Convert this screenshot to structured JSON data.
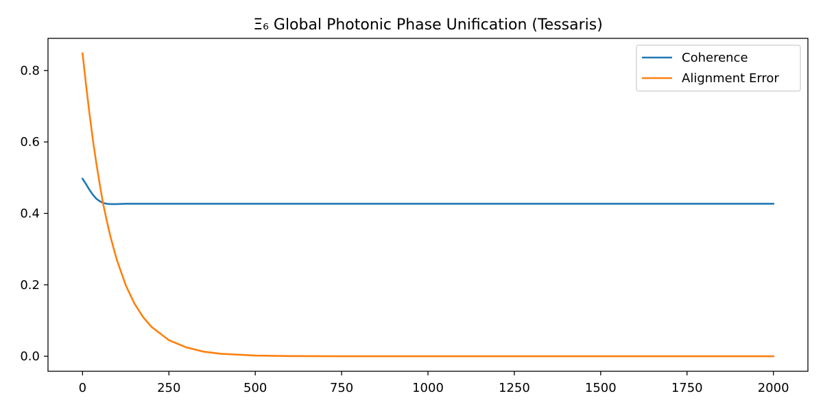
{
  "chart_data": {
    "type": "line",
    "title": "Ξ₆ Global Photonic Phase Unification (Tessaris)",
    "xlabel": "",
    "ylabel": "",
    "xlim": [
      -100,
      2100
    ],
    "ylim": [
      -0.042,
      0.89
    ],
    "x_ticks": [
      0,
      250,
      500,
      750,
      1000,
      1250,
      1500,
      1750,
      2000
    ],
    "y_ticks": [
      0.0,
      0.2,
      0.4,
      0.6,
      0.8
    ],
    "x_tick_labels": [
      "0",
      "250",
      "500",
      "750",
      "1000",
      "1250",
      "1500",
      "1750",
      "2000"
    ],
    "y_tick_labels": [
      "0.0",
      "0.2",
      "0.4",
      "0.6",
      "0.8"
    ],
    "grid": false,
    "legend_position": "top-right",
    "series": [
      {
        "name": "Coherence",
        "color": "#1f77b4",
        "x": [
          0,
          10,
          20,
          30,
          40,
          50,
          60,
          70,
          80,
          100,
          125,
          150,
          200,
          300,
          500,
          750,
          1000,
          1250,
          1500,
          1750,
          2000
        ],
        "y": [
          0.497,
          0.482,
          0.466,
          0.452,
          0.441,
          0.434,
          0.429,
          0.427,
          0.426,
          0.426,
          0.427,
          0.427,
          0.427,
          0.427,
          0.427,
          0.427,
          0.427,
          0.427,
          0.427,
          0.427,
          0.427
        ]
      },
      {
        "name": "Alignment Error",
        "color": "#ff7f0e",
        "x": [
          0,
          10,
          20,
          30,
          40,
          50,
          60,
          70,
          80,
          90,
          100,
          125,
          150,
          175,
          200,
          250,
          300,
          350,
          400,
          500,
          600,
          750,
          1000,
          1250,
          1500,
          1750,
          2000
        ],
        "y": [
          0.848,
          0.76,
          0.68,
          0.605,
          0.54,
          0.48,
          0.425,
          0.38,
          0.338,
          0.302,
          0.268,
          0.199,
          0.148,
          0.11,
          0.082,
          0.045,
          0.025,
          0.013,
          0.007,
          0.002,
          0.0005,
          0.0001,
          0.0,
          0.0,
          0.0,
          0.0,
          0.0
        ]
      }
    ]
  }
}
